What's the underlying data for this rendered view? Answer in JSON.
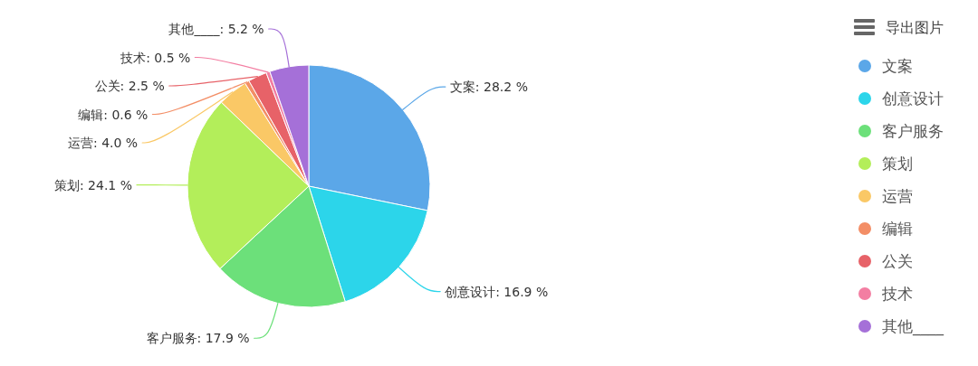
{
  "chart_data": {
    "type": "pie",
    "categories": [
      "文案",
      "创意设计",
      "客户服务",
      "策划",
      "运营",
      "编辑",
      "公关",
      "技术",
      "其他____"
    ],
    "values": [
      28.2,
      16.9,
      17.9,
      24.1,
      4.0,
      0.6,
      2.5,
      0.5,
      5.2
    ],
    "value_labels": [
      "文案: 28.2 %",
      "创意设计: 16.9 %",
      "客户服务: 17.9 %",
      "策划: 24.1 %",
      "运营: 4.0 %",
      "编辑: 0.6 %",
      "公关: 2.5 %",
      "技术: 0.5 %",
      "其他____: 5.2 %"
    ],
    "colors": [
      "#5ba7e8",
      "#2cd5ea",
      "#6ce07a",
      "#b3ee5a",
      "#fac866",
      "#f38e66",
      "#e76268",
      "#f37ea2",
      "#a570d8"
    ],
    "legend": "right",
    "annotations": [
      "导出图片"
    ]
  }
}
